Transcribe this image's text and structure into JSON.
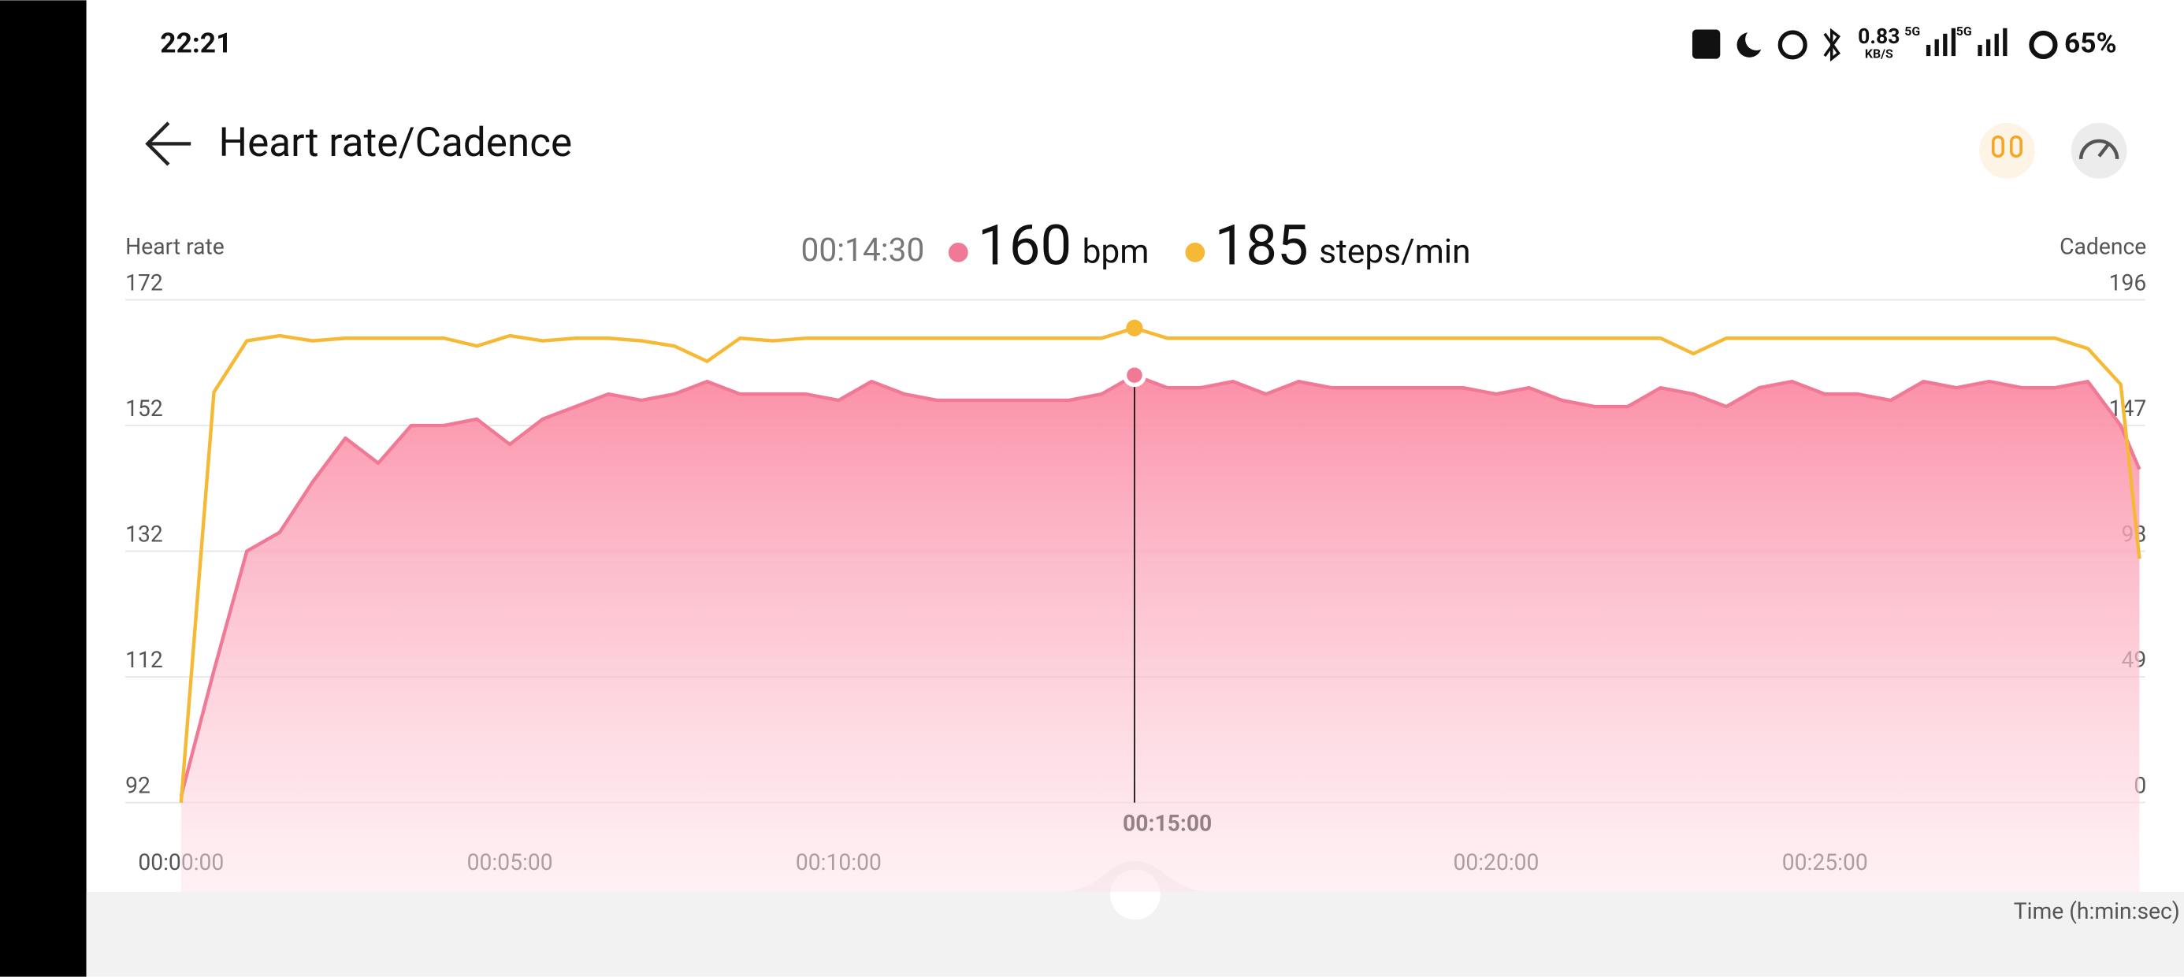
{
  "status_bar": {
    "time": "22:21",
    "speed": "0.83",
    "speed_unit": "KB/S",
    "network_1": "5G",
    "network_2": "5G",
    "battery": "65%"
  },
  "header": {
    "title": "Heart rate/Cadence"
  },
  "chart_data": {
    "type": "line",
    "x_label": "Time (h:min:sec)",
    "x": [
      0,
      30,
      60,
      90,
      120,
      150,
      180,
      210,
      240,
      270,
      300,
      330,
      360,
      390,
      420,
      450,
      480,
      510,
      540,
      570,
      600,
      630,
      660,
      690,
      720,
      750,
      780,
      810,
      840,
      870,
      900,
      930,
      960,
      990,
      1020,
      1050,
      1080,
      1110,
      1140,
      1170,
      1200,
      1230,
      1260,
      1290,
      1320,
      1350,
      1380,
      1410,
      1440,
      1470,
      1500,
      1530,
      1560,
      1590,
      1620,
      1650,
      1680,
      1710,
      1740,
      1770,
      1787
    ],
    "xlim": [
      0,
      1787
    ],
    "xticks": [
      {
        "value": 0,
        "label": "00:00:00"
      },
      {
        "value": 300,
        "label": "00:05:00"
      },
      {
        "value": 600,
        "label": "00:10:00"
      },
      {
        "value": 900,
        "label": "00:15:00"
      },
      {
        "value": 1200,
        "label": "00:20:00"
      },
      {
        "value": 1500,
        "label": "00:25:00"
      }
    ],
    "highlighted_xtick": 3,
    "ylim": [
      92,
      172
    ],
    "yticks": [
      92,
      112,
      132,
      152,
      172
    ],
    "y2lim": [
      0,
      196
    ],
    "y2ticks": [
      0,
      49,
      98,
      147,
      196
    ],
    "grid": true,
    "series": [
      {
        "name": "Heart rate",
        "color": "#f07a96",
        "area": true,
        "values": [
          93,
          113,
          132,
          135,
          143,
          150,
          146,
          152,
          152,
          153,
          149,
          153,
          155,
          157,
          156,
          157,
          159,
          157,
          157,
          157,
          156,
          159,
          157,
          156,
          156,
          156,
          156,
          156,
          157,
          160,
          158,
          158,
          159,
          157,
          159,
          158,
          158,
          158,
          158,
          158,
          157,
          158,
          156,
          155,
          155,
          158,
          157,
          155,
          158,
          159,
          157,
          157,
          156,
          159,
          158,
          159,
          158,
          158,
          159,
          152,
          145
        ]
      },
      {
        "name": "Cadence",
        "color": "#f5b935",
        "axis": "y2",
        "values": [
          0,
          160,
          180,
          182,
          180,
          181,
          181,
          181,
          181,
          178,
          182,
          180,
          181,
          181,
          180,
          178,
          172,
          181,
          180,
          181,
          181,
          181,
          181,
          181,
          181,
          181,
          181,
          181,
          181,
          185,
          181,
          181,
          181,
          181,
          181,
          181,
          181,
          181,
          181,
          181,
          181,
          181,
          181,
          181,
          181,
          181,
          175,
          181,
          181,
          181,
          181,
          181,
          181,
          181,
          181,
          181,
          181,
          181,
          177,
          163,
          95
        ]
      }
    ],
    "cursor": {
      "x": {
        "value": 870,
        "label": "00:14:30"
      },
      "heart_rate": 160,
      "heart_rate_unit": "bpm",
      "cadence": 185,
      "cadence_unit": "steps/min"
    }
  }
}
